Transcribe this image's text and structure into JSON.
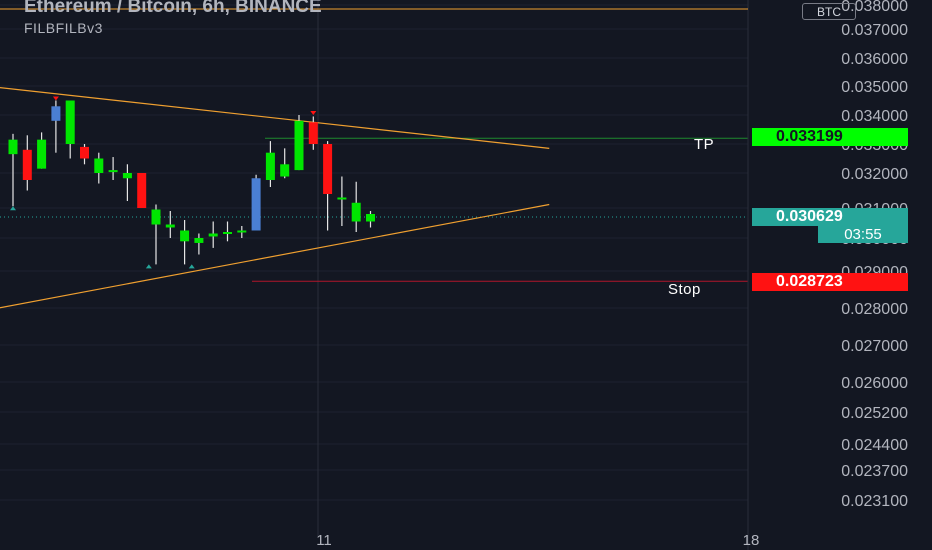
{
  "header": {
    "title": "Ethereum / Bitcoin, 6h, BINANCE",
    "indicator": "FILBFILBv3",
    "currency_badge": "BTC"
  },
  "chart_data": {
    "type": "candlestick",
    "title": "Ethereum / Bitcoin, 6h, BINANCE",
    "y_axis": {
      "side": "right",
      "ticks": [
        "0.038000",
        "0.037000",
        "0.036000",
        "0.035000",
        "0.034000",
        "0.033000",
        "0.032000",
        "0.031000",
        "0.030000",
        "0.029000",
        "0.028000",
        "0.027000",
        "0.026000",
        "0.025200",
        "0.024400",
        "0.023700",
        "0.023100"
      ]
    },
    "x_axis": {
      "ticks": [
        "11",
        "18"
      ]
    },
    "candles": [
      {
        "o": 0.03265,
        "h": 0.03335,
        "l": 0.03105,
        "c": 0.03315,
        "color": "green"
      },
      {
        "o": 0.0328,
        "h": 0.0333,
        "l": 0.0315,
        "c": 0.0318,
        "color": "red"
      },
      {
        "o": 0.03215,
        "h": 0.0334,
        "l": 0.03215,
        "c": 0.03315,
        "color": "green"
      },
      {
        "o": 0.0338,
        "h": 0.0345,
        "l": 0.0327,
        "c": 0.0343,
        "color": "blue"
      },
      {
        "o": 0.0345,
        "h": 0.0345,
        "l": 0.0325,
        "c": 0.033,
        "color": "green"
      },
      {
        "o": 0.0329,
        "h": 0.033,
        "l": 0.0323,
        "c": 0.0325,
        "color": "red"
      },
      {
        "o": 0.0325,
        "h": 0.0327,
        "l": 0.0317,
        "c": 0.032,
        "color": "green"
      },
      {
        "o": 0.0321,
        "h": 0.03255,
        "l": 0.0318,
        "c": 0.03205,
        "color": "green"
      },
      {
        "o": 0.032,
        "h": 0.0323,
        "l": 0.0312,
        "c": 0.03185,
        "color": "green"
      },
      {
        "o": 0.032,
        "h": 0.032,
        "l": 0.031,
        "c": 0.031,
        "color": "red"
      },
      {
        "o": 0.03095,
        "h": 0.0311,
        "l": 0.0292,
        "c": 0.03045,
        "color": "green"
      },
      {
        "o": 0.03045,
        "h": 0.0309,
        "l": 0.03,
        "c": 0.03035,
        "color": "green"
      },
      {
        "o": 0.03025,
        "h": 0.0306,
        "l": 0.0292,
        "c": 0.0299,
        "color": "green"
      },
      {
        "o": 0.03,
        "h": 0.03015,
        "l": 0.0295,
        "c": 0.02985,
        "color": "green"
      },
      {
        "o": 0.03005,
        "h": 0.03055,
        "l": 0.0297,
        "c": 0.03015,
        "color": "green"
      },
      {
        "o": 0.03015,
        "h": 0.03055,
        "l": 0.0299,
        "c": 0.0302,
        "color": "green"
      },
      {
        "o": 0.0302,
        "h": 0.0304,
        "l": 0.03,
        "c": 0.03025,
        "color": "green"
      },
      {
        "o": 0.03025,
        "h": 0.03195,
        "l": 0.03025,
        "c": 0.03185,
        "color": "blue"
      },
      {
        "o": 0.0318,
        "h": 0.0331,
        "l": 0.0316,
        "c": 0.0327,
        "color": "green"
      },
      {
        "o": 0.0319,
        "h": 0.03285,
        "l": 0.03185,
        "c": 0.0323,
        "color": "green"
      },
      {
        "o": 0.0321,
        "h": 0.034,
        "l": 0.0321,
        "c": 0.0338,
        "color": "green"
      },
      {
        "o": 0.03375,
        "h": 0.03395,
        "l": 0.0328,
        "c": 0.033,
        "color": "red"
      },
      {
        "o": 0.033,
        "h": 0.0331,
        "l": 0.03025,
        "c": 0.0314,
        "color": "red"
      },
      {
        "o": 0.0313,
        "h": 0.0319,
        "l": 0.0304,
        "c": 0.03125,
        "color": "green"
      },
      {
        "o": 0.03115,
        "h": 0.03175,
        "l": 0.0302,
        "c": 0.03055,
        "color": "green"
      },
      {
        "o": 0.03055,
        "h": 0.0309,
        "l": 0.03035,
        "c": 0.0308,
        "color": "green"
      }
    ],
    "horizontal_levels": [
      {
        "name": "TP",
        "price": 0.033199,
        "label": "TP",
        "tag": "0.033199",
        "color": "#00ff00"
      },
      {
        "name": "Stop",
        "price": 0.028723,
        "label": "Stop",
        "tag": "0.028723",
        "color": "#ff1744"
      }
    ],
    "last_price": {
      "value": "0.030629",
      "countdown": "03:55",
      "color": "#26a69a"
    },
    "triangle_lines": [
      {
        "from": [
          -1,
          0.03495
        ],
        "to": [
          37.5,
          0.03285
        ]
      },
      {
        "from": [
          -1,
          0.028
        ],
        "to": [
          37.5,
          0.0311
        ]
      }
    ],
    "colors": {
      "background": "#131722",
      "up": "#00e600",
      "down": "#ff1212",
      "blue": "#4a7fd3",
      "trendline": "#f0a030",
      "axis_text": "#b2b5be"
    },
    "grid": true,
    "legend": "top-left"
  }
}
